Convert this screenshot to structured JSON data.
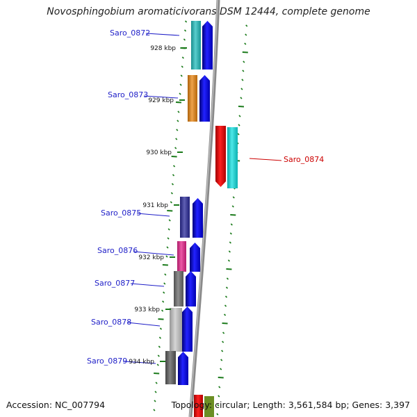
{
  "title": "Novosphingobium aromaticivorans DSM 12444, complete genome",
  "footer": {
    "accession": "Accession: NC_007794",
    "summary": "Topology: circular; Length: 3,561,584 bp; Genes: 3,397"
  },
  "colors": {
    "backbone": "#8a8a8a",
    "tick": "#1a7a1a",
    "label_forward": "#1d1dc7",
    "label_reverse": "#cc0000"
  },
  "kbp_labels": [
    "928 kbp",
    "929 kbp",
    "930 kbp",
    "931 kbp",
    "932 kbp",
    "933 kbp",
    "934 kbp"
  ],
  "genes": [
    {
      "name": "Saro_0872",
      "strand": "+",
      "label_color": "#1d1dc7",
      "cog_color": "#22bdbd"
    },
    {
      "name": "Saro_0873",
      "strand": "+",
      "label_color": "#1d1dc7",
      "cog_color": "#e8830e"
    },
    {
      "name": "Saro_0874",
      "strand": "-",
      "label_color": "#cc0000",
      "cog_color": "#11e0e0"
    },
    {
      "name": "Saro_0875",
      "strand": "+",
      "label_color": "#1d1dc7",
      "cog_color": "#2a2a9a"
    },
    {
      "name": "Saro_0876",
      "strand": "+",
      "label_color": "#1d1dc7",
      "cog_color": "#e6248a"
    },
    {
      "name": "Saro_0877",
      "strand": "+",
      "label_color": "#1d1dc7",
      "cog_color": "#6a6a6a"
    },
    {
      "name": "Saro_0878",
      "strand": "+",
      "label_color": "#1d1dc7",
      "cog_color": "#c8c8c8"
    },
    {
      "name": "Saro_0879",
      "strand": "+",
      "label_color": "#1d1dc7",
      "cog_color": "#5a5a5a"
    }
  ]
}
